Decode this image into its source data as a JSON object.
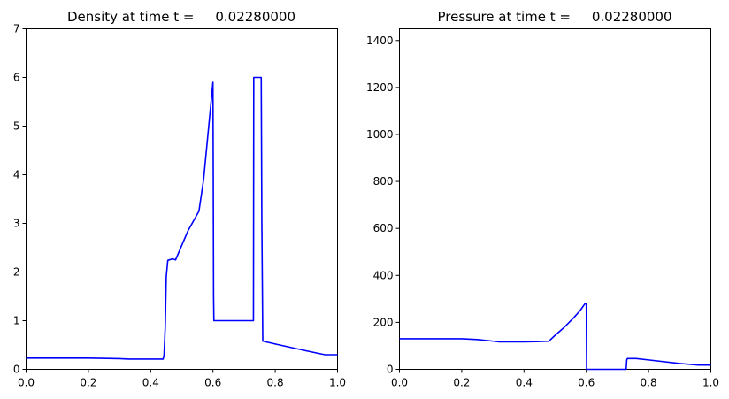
{
  "chart_data": [
    {
      "type": "line",
      "title": "Density at time t =     0.02280000",
      "xlabel": "",
      "ylabel": "",
      "xlim": [
        0.0,
        1.0
      ],
      "ylim": [
        0,
        7
      ],
      "x_ticks": [
        "0.0",
        "0.2",
        "0.4",
        "0.6",
        "0.8",
        "1.0"
      ],
      "y_ticks": [
        "0",
        "1",
        "2",
        "3",
        "4",
        "5",
        "6",
        "7"
      ],
      "grid": false,
      "series": [
        {
          "color": "#0000ff",
          "x": [
            0.0,
            0.1,
            0.2,
            0.3,
            0.33,
            0.4,
            0.44,
            0.443,
            0.447,
            0.45,
            0.455,
            0.47,
            0.48,
            0.5,
            0.52,
            0.555,
            0.57,
            0.585,
            0.6,
            0.601,
            0.602,
            0.603,
            0.65,
            0.7,
            0.73,
            0.731,
            0.735,
            0.755,
            0.757,
            0.76,
            0.8,
            0.9,
            0.96,
            1.0
          ],
          "y": [
            0.23,
            0.23,
            0.23,
            0.22,
            0.21,
            0.21,
            0.21,
            0.3,
            0.9,
            1.9,
            2.24,
            2.27,
            2.25,
            2.55,
            2.85,
            3.25,
            3.9,
            4.9,
            5.9,
            4.0,
            1.5,
            1.0,
            1.0,
            1.0,
            1.0,
            6.0,
            6.0,
            6.0,
            3.0,
            0.58,
            0.52,
            0.38,
            0.3,
            0.3
          ]
        }
      ]
    },
    {
      "type": "line",
      "title": "Pressure at time t =     0.02280000",
      "xlabel": "",
      "ylabel": "",
      "xlim": [
        0.0,
        1.0
      ],
      "ylim": [
        0,
        1450
      ],
      "x_ticks": [
        "0.0",
        "0.2",
        "0.4",
        "0.6",
        "0.8",
        "1.0"
      ],
      "y_ticks": [
        "0",
        "200",
        "400",
        "600",
        "800",
        "1000",
        "1200",
        "1400"
      ],
      "grid": false,
      "series": [
        {
          "color": "#0000ff",
          "x": [
            0.0,
            0.1,
            0.2,
            0.25,
            0.3,
            0.32,
            0.4,
            0.44,
            0.48,
            0.5,
            0.53,
            0.56,
            0.58,
            0.595,
            0.6,
            0.601,
            0.605,
            0.65,
            0.7,
            0.728,
            0.73,
            0.732,
            0.76,
            0.8,
            0.9,
            0.96,
            1.0
          ],
          "y": [
            130,
            130,
            130,
            127,
            120,
            117,
            117,
            118,
            120,
            145,
            180,
            220,
            250,
            278,
            280,
            0,
            0,
            0,
            0,
            0,
            40,
            46,
            46,
            40,
            25,
            18,
            18
          ]
        }
      ]
    }
  ]
}
